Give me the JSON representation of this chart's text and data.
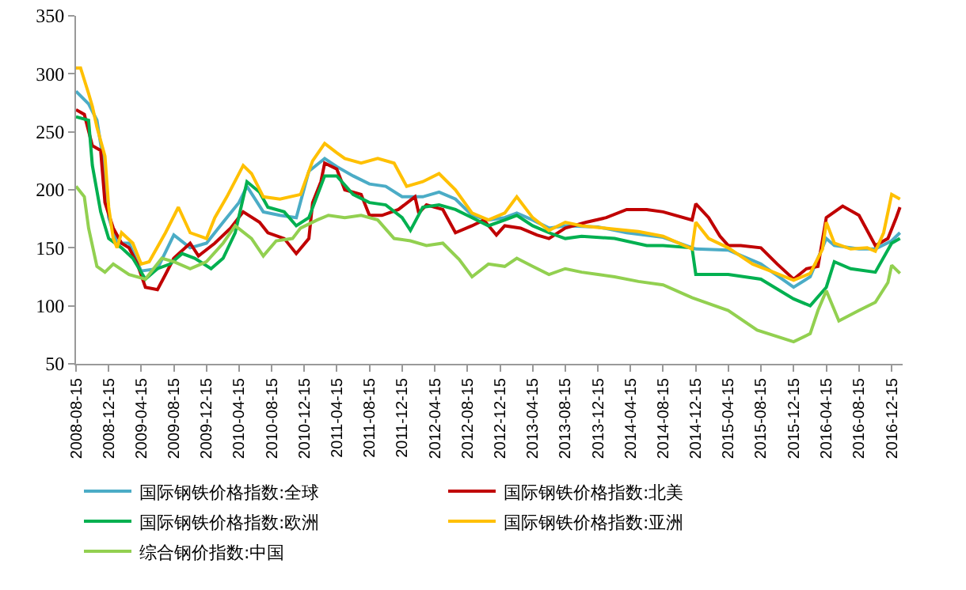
{
  "chart_data": {
    "type": "line",
    "ylim": [
      50,
      350
    ],
    "yticks": [
      50,
      100,
      150,
      200,
      250,
      300,
      350
    ],
    "xlim": [
      "2008-08-15",
      "2017-01-25"
    ],
    "xticks": [
      "2008-08-15",
      "2008-12-15",
      "2009-04-15",
      "2009-08-15",
      "2009-12-15",
      "2010-04-15",
      "2010-08-15",
      "2010-12-15",
      "2011-04-15",
      "2011-08-15",
      "2011-12-15",
      "2012-04-15",
      "2012-08-15",
      "2012-12-15",
      "2013-04-15",
      "2013-08-15",
      "2013-12-15",
      "2014-04-15",
      "2014-08-15",
      "2014-12-15",
      "2015-04-15",
      "2015-08-15",
      "2015-12-15",
      "2016-04-15",
      "2016-08-15",
      "2016-12-15"
    ],
    "grid": false,
    "legend": "bottom",
    "marker": "none",
    "line_style": "solid",
    "series": [
      {
        "name": "国际钢铁价格指数:全球",
        "color": "#4bacc6",
        "x": [
          "2008-08-15",
          "2008-10-01",
          "2008-11-01",
          "2008-12-01",
          "2008-12-15",
          "2009-01-15",
          "2009-03-01",
          "2009-04-15",
          "2009-06-15",
          "2009-08-15",
          "2009-10-15",
          "2009-12-15",
          "2010-02-15",
          "2010-04-15",
          "2010-05-15",
          "2010-07-15",
          "2010-09-15",
          "2010-11-15",
          "2011-01-01",
          "2011-03-01",
          "2011-04-15",
          "2011-06-15",
          "2011-08-15",
          "2011-10-15",
          "2011-12-15",
          "2012-03-01",
          "2012-05-01",
          "2012-07-01",
          "2012-09-01",
          "2012-11-01",
          "2013-01-01",
          "2013-02-15",
          "2013-04-15",
          "2013-06-15",
          "2013-08-15",
          "2013-12-15",
          "2014-04-01",
          "2014-08-15",
          "2014-12-15",
          "2015-04-15",
          "2015-08-15",
          "2015-12-15",
          "2016-02-15",
          "2016-04-15",
          "2016-05-15",
          "2016-08-15",
          "2016-10-15",
          "2016-12-15",
          "2017-01-15"
        ],
        "values": [
          285,
          274,
          260,
          216,
          176,
          154,
          154,
          130,
          132,
          161,
          150,
          154,
          172,
          189,
          203,
          181,
          178,
          176,
          216,
          227,
          220,
          212,
          205,
          203,
          194,
          194,
          198,
          192,
          178,
          174,
          176,
          180,
          174,
          167,
          169,
          168,
          163,
          159,
          149,
          148,
          136,
          116,
          125,
          158,
          152,
          149,
          149,
          156,
          163
        ]
      },
      {
        "name": "国际钢铁价格指数:北美",
        "color": "#c00000",
        "x": [
          "2008-08-15",
          "2008-09-15",
          "2008-10-15",
          "2008-11-15",
          "2008-12-01",
          "2009-01-01",
          "2009-02-01",
          "2009-03-01",
          "2009-04-01",
          "2009-05-01",
          "2009-06-15",
          "2009-07-15",
          "2009-08-15",
          "2009-10-15",
          "2009-11-15",
          "2010-01-15",
          "2010-03-15",
          "2010-05-01",
          "2010-07-01",
          "2010-08-01",
          "2010-10-01",
          "2010-11-15",
          "2011-01-01",
          "2011-01-15",
          "2011-02-15",
          "2011-03-01",
          "2011-04-15",
          "2011-05-15",
          "2011-07-15",
          "2011-08-15",
          "2011-10-01",
          "2011-12-01",
          "2012-02-01",
          "2012-02-15",
          "2012-03-15",
          "2012-05-15",
          "2012-07-01",
          "2012-09-01",
          "2012-10-15",
          "2012-12-01",
          "2013-01-01",
          "2013-03-01",
          "2013-05-01",
          "2013-06-15",
          "2013-08-15",
          "2013-11-01",
          "2014-01-15",
          "2014-04-01",
          "2014-06-15",
          "2014-08-15",
          "2014-12-01",
          "2014-12-15",
          "2015-02-01",
          "2015-03-15",
          "2015-04-15",
          "2015-06-01",
          "2015-08-15",
          "2015-10-15",
          "2015-12-15",
          "2016-02-01",
          "2016-03-15",
          "2016-04-15",
          "2016-06-15",
          "2016-08-15",
          "2016-10-15",
          "2016-12-01",
          "2017-01-01",
          "2017-01-15"
        ],
        "values": [
          269,
          265,
          238,
          234,
          189,
          167,
          154,
          150,
          136,
          116,
          114,
          127,
          141,
          154,
          143,
          154,
          167,
          181,
          172,
          163,
          158,
          145,
          158,
          189,
          207,
          223,
          218,
          200,
          196,
          178,
          178,
          183,
          194,
          180,
          187,
          183,
          163,
          169,
          174,
          161,
          169,
          167,
          161,
          158,
          167,
          172,
          176,
          183,
          183,
          181,
          174,
          188,
          176,
          160,
          152,
          152,
          150,
          136,
          123,
          132,
          134,
          176,
          186,
          178,
          152,
          158,
          176,
          185
        ]
      },
      {
        "name": "国际钢铁价格指数:欧洲",
        "color": "#00b050",
        "x": [
          "2008-08-15",
          "2008-10-01",
          "2008-10-15",
          "2008-11-15",
          "2008-12-15",
          "2009-02-01",
          "2009-03-15",
          "2009-05-01",
          "2009-06-15",
          "2009-08-01",
          "2009-09-15",
          "2009-11-01",
          "2010-01-01",
          "2010-02-15",
          "2010-04-01",
          "2010-05-15",
          "2010-07-01",
          "2010-08-01",
          "2010-10-01",
          "2010-11-15",
          "2011-01-01",
          "2011-03-01",
          "2011-04-15",
          "2011-06-15",
          "2011-08-15",
          "2011-10-15",
          "2011-12-15",
          "2012-01-15",
          "2012-03-01",
          "2012-05-01",
          "2012-07-01",
          "2012-09-01",
          "2012-11-01",
          "2013-01-01",
          "2013-02-15",
          "2013-04-15",
          "2013-06-15",
          "2013-08-15",
          "2013-10-15",
          "2014-02-15",
          "2014-06-15",
          "2014-08-15",
          "2014-12-01",
          "2014-12-15",
          "2015-04-15",
          "2015-08-15",
          "2015-12-15",
          "2016-02-15",
          "2016-04-15",
          "2016-05-15",
          "2016-07-15",
          "2016-10-15",
          "2016-12-15",
          "2017-01-15"
        ],
        "values": [
          263,
          260,
          221,
          181,
          158,
          150,
          141,
          123,
          132,
          136,
          145,
          141,
          132,
          141,
          163,
          207,
          198,
          185,
          181,
          169,
          176,
          212,
          212,
          196,
          189,
          187,
          176,
          165,
          185,
          187,
          183,
          176,
          169,
          174,
          178,
          169,
          163,
          158,
          160,
          158,
          152,
          152,
          150,
          127,
          127,
          123,
          106,
          100,
          116,
          138,
          132,
          129,
          154,
          158
        ]
      },
      {
        "name": "国际钢铁价格指数:亚洲",
        "color": "#ffc000",
        "x": [
          "2008-08-15",
          "2008-09-01",
          "2008-10-01",
          "2008-10-15",
          "2008-11-01",
          "2008-12-01",
          "2008-12-15",
          "2009-01-01",
          "2009-01-15",
          "2009-02-01",
          "2009-03-15",
          "2009-04-15",
          "2009-05-15",
          "2009-07-15",
          "2009-09-01",
          "2009-10-15",
          "2009-12-15",
          "2010-01-15",
          "2010-03-01",
          "2010-05-01",
          "2010-06-01",
          "2010-07-15",
          "2010-09-15",
          "2010-12-01",
          "2011-01-15",
          "2011-03-01",
          "2011-04-15",
          "2011-05-15",
          "2011-07-15",
          "2011-09-15",
          "2011-11-15",
          "2012-01-01",
          "2012-03-01",
          "2012-05-01",
          "2012-07-01",
          "2012-09-01",
          "2012-11-01",
          "2013-01-01",
          "2013-02-15",
          "2013-04-15",
          "2013-06-15",
          "2013-08-15",
          "2013-10-15",
          "2014-02-15",
          "2014-05-15",
          "2014-08-15",
          "2014-12-01",
          "2014-12-15",
          "2015-02-01",
          "2015-04-15",
          "2015-07-15",
          "2015-10-01",
          "2015-12-15",
          "2016-02-15",
          "2016-04-01",
          "2016-04-15",
          "2016-05-15",
          "2016-07-15",
          "2016-09-15",
          "2016-10-15",
          "2016-11-15",
          "2016-12-15",
          "2017-01-15"
        ],
        "values": [
          305,
          305,
          283,
          272,
          254,
          229,
          185,
          158,
          150,
          163,
          154,
          136,
          138,
          163,
          185,
          163,
          158,
          176,
          194,
          221,
          214,
          194,
          192,
          196,
          225,
          240,
          232,
          227,
          223,
          227,
          223,
          203,
          207,
          214,
          200,
          180,
          174,
          180,
          194,
          176,
          165,
          172,
          169,
          166,
          164,
          160,
          149,
          172,
          158,
          150,
          136,
          129,
          122,
          128,
          149,
          172,
          154,
          149,
          150,
          147,
          163,
          196,
          192
        ]
      },
      {
        "name": "综合钢价指数:中国",
        "color": "#92d050",
        "x": [
          "2008-08-15",
          "2008-09-15",
          "2008-10-01",
          "2008-11-01",
          "2008-12-01",
          "2009-01-01",
          "2009-03-01",
          "2009-05-01",
          "2009-07-01",
          "2009-08-15",
          "2009-10-15",
          "2009-12-15",
          "2010-02-15",
          "2010-04-01",
          "2010-06-01",
          "2010-07-15",
          "2010-09-01",
          "2010-11-01",
          "2010-12-01",
          "2011-02-01",
          "2011-03-15",
          "2011-05-15",
          "2011-07-15",
          "2011-09-15",
          "2011-11-15",
          "2012-01-15",
          "2012-03-15",
          "2012-05-15",
          "2012-07-15",
          "2012-09-01",
          "2012-11-01",
          "2013-01-01",
          "2013-02-15",
          "2013-04-15",
          "2013-06-15",
          "2013-08-15",
          "2013-10-15",
          "2013-12-15",
          "2014-02-15",
          "2014-05-15",
          "2014-08-15",
          "2014-12-01",
          "2015-04-15",
          "2015-08-01",
          "2015-12-15",
          "2016-02-15",
          "2016-03-15",
          "2016-04-15",
          "2016-06-01",
          "2016-08-15",
          "2016-10-15",
          "2016-12-01",
          "2016-12-15",
          "2017-01-15"
        ],
        "values": [
          203,
          194,
          167,
          134,
          129,
          136,
          127,
          123,
          141,
          138,
          132,
          138,
          154,
          169,
          158,
          143,
          156,
          158,
          167,
          174,
          178,
          176,
          178,
          174,
          158,
          156,
          152,
          154,
          140,
          125,
          136,
          134,
          141,
          134,
          127,
          132,
          129,
          127,
          125,
          121,
          118,
          107,
          96,
          79,
          69,
          76,
          96,
          113,
          87,
          96,
          103,
          120,
          135,
          128
        ]
      }
    ]
  }
}
